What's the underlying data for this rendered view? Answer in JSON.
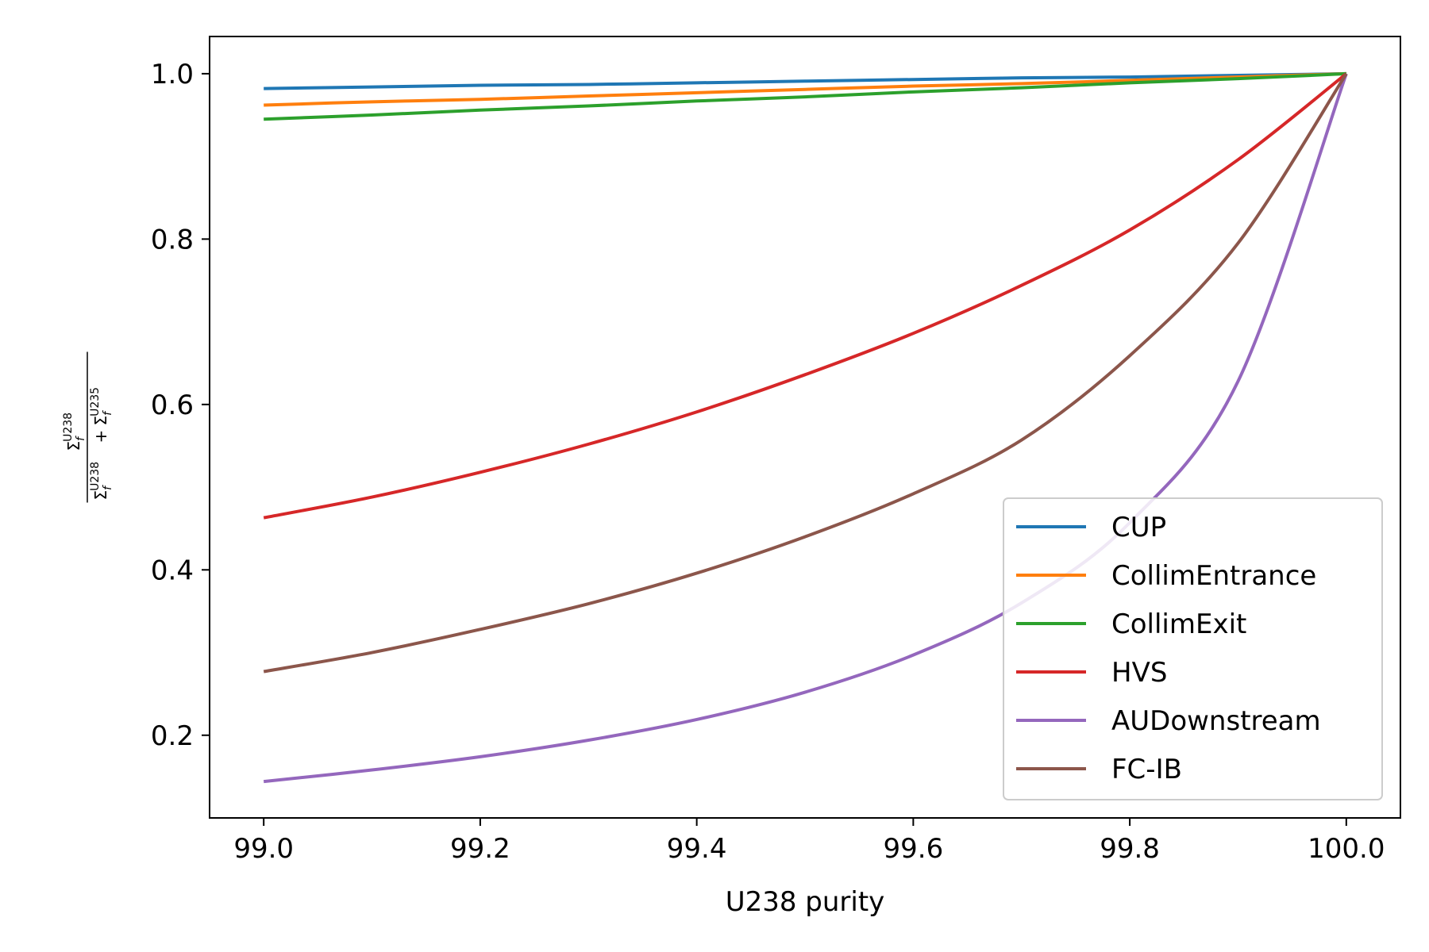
{
  "chart_data": {
    "type": "line",
    "title": "",
    "xlabel": "U238 purity",
    "ylabel": "Σf^U238 / (Σf^U238 + Σf^U235)",
    "ylabel_parts": {
      "num_sym": "Σ",
      "sub": "f",
      "iso238": "U238",
      "plus": "+",
      "iso235": "U235"
    },
    "xlim": [
      98.95,
      100.05
    ],
    "ylim": [
      0.1,
      1.045
    ],
    "xticks": [
      {
        "value": 99.0,
        "label": "99.0"
      },
      {
        "value": 99.2,
        "label": "99.2"
      },
      {
        "value": 99.4,
        "label": "99.4"
      },
      {
        "value": 99.6,
        "label": "99.6"
      },
      {
        "value": 99.8,
        "label": "99.8"
      },
      {
        "value": 100.0,
        "label": "100.0"
      }
    ],
    "yticks": [
      {
        "value": 0.2,
        "label": "0.2"
      },
      {
        "value": 0.4,
        "label": "0.4"
      },
      {
        "value": 0.6,
        "label": "0.6"
      },
      {
        "value": 0.8,
        "label": "0.8"
      },
      {
        "value": 1.0,
        "label": "1.0"
      }
    ],
    "grid": false,
    "legend_position": "lower-right",
    "x": [
      99.0,
      99.1,
      99.2,
      99.3,
      99.4,
      99.5,
      99.6,
      99.7,
      99.8,
      99.9,
      100.0
    ],
    "series": [
      {
        "name": "CUP",
        "color": "#1f77b4",
        "values": [
          0.982,
          0.984,
          0.986,
          0.987,
          0.989,
          0.991,
          0.993,
          0.995,
          0.996,
          0.998,
          1.0
        ]
      },
      {
        "name": "CollimEntrance",
        "color": "#ff7f0e",
        "values": [
          0.962,
          0.966,
          0.969,
          0.973,
          0.977,
          0.981,
          0.985,
          0.988,
          0.992,
          0.996,
          1.0
        ]
      },
      {
        "name": "CollimExit",
        "color": "#2ca02c",
        "values": [
          0.945,
          0.95,
          0.956,
          0.961,
          0.967,
          0.972,
          0.978,
          0.983,
          0.989,
          0.994,
          1.0
        ]
      },
      {
        "name": "HVS",
        "color": "#d62728",
        "values": [
          0.463,
          0.488,
          0.518,
          0.552,
          0.591,
          0.636,
          0.686,
          0.744,
          0.811,
          0.896,
          1.0
        ]
      },
      {
        "name": "AUDownstream",
        "color": "#9467bd",
        "values": [
          0.144,
          0.158,
          0.174,
          0.194,
          0.219,
          0.252,
          0.297,
          0.36,
          0.457,
          0.628,
          1.0
        ]
      },
      {
        "name": "FC-IB",
        "color": "#8c564b",
        "values": [
          0.277,
          0.3,
          0.328,
          0.359,
          0.396,
          0.44,
          0.492,
          0.557,
          0.659,
          0.795,
          1.0
        ]
      }
    ]
  }
}
